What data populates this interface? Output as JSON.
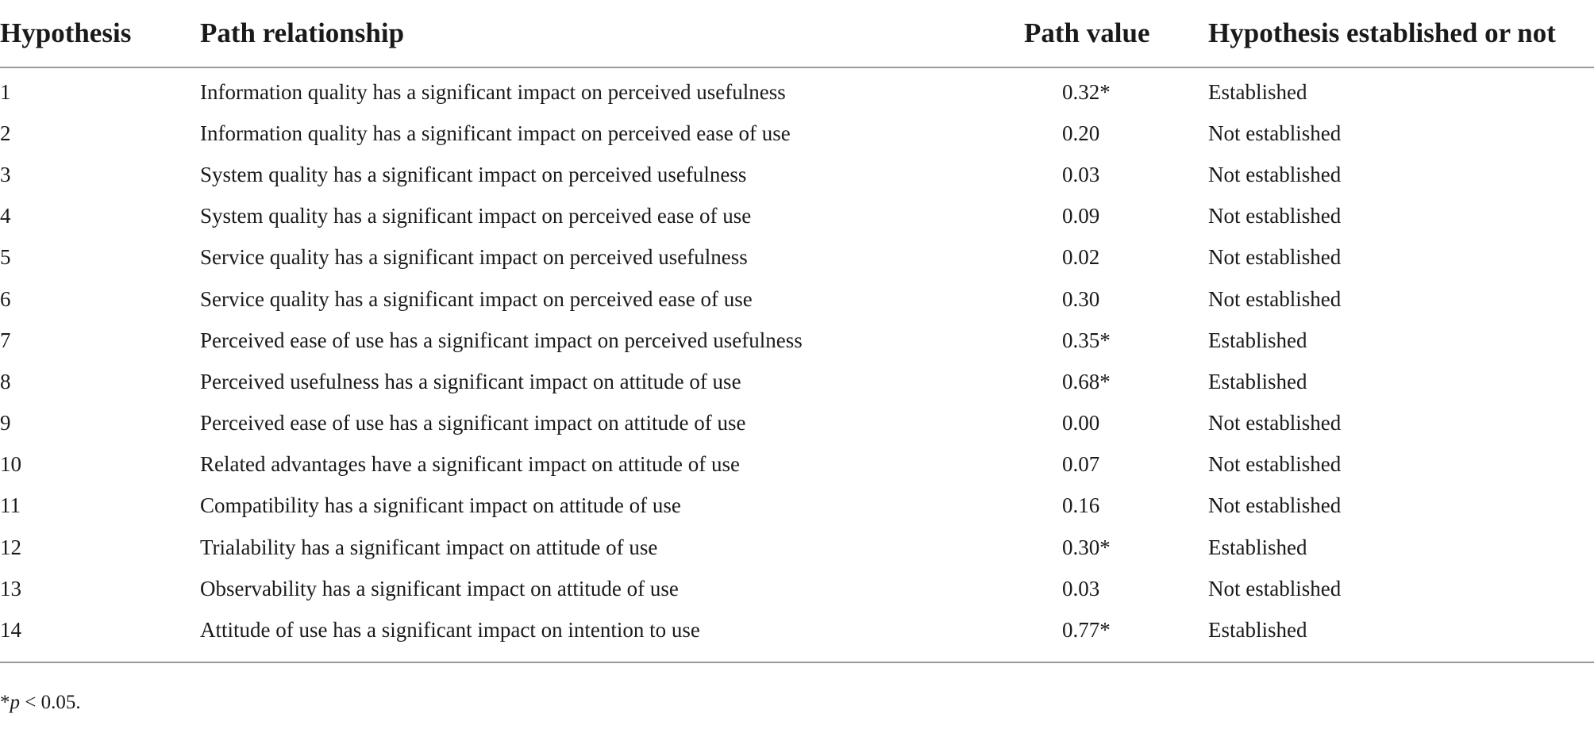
{
  "table": {
    "headers": {
      "hypothesis": "Hypothesis",
      "path_relationship": "Path relationship",
      "path_value": "Path value",
      "established": "Hypothesis established or not"
    },
    "rows": [
      {
        "hypothesis": "1",
        "path": "Information quality has a significant impact on perceived usefulness",
        "value": "0.32*",
        "established": "Established"
      },
      {
        "hypothesis": "2",
        "path": "Information quality has a significant impact on perceived ease of use",
        "value": "0.20",
        "established": "Not established"
      },
      {
        "hypothesis": "3",
        "path": "System quality has a significant impact on perceived usefulness",
        "value": "0.03",
        "established": "Not established"
      },
      {
        "hypothesis": "4",
        "path": "System quality has a significant impact on perceived ease of use",
        "value": "0.09",
        "established": "Not established"
      },
      {
        "hypothesis": "5",
        "path": "Service quality has a significant impact on perceived usefulness",
        "value": "0.02",
        "established": "Not established"
      },
      {
        "hypothesis": "6",
        "path": "Service quality has a significant impact on perceived ease of use",
        "value": "0.30",
        "established": "Not established"
      },
      {
        "hypothesis": "7",
        "path": "Perceived ease of use has a significant impact on perceived usefulness",
        "value": "0.35*",
        "established": "Established"
      },
      {
        "hypothesis": "8",
        "path": "Perceived usefulness has a significant impact on attitude of use",
        "value": "0.68*",
        "established": "Established"
      },
      {
        "hypothesis": "9",
        "path": "Perceived ease of use has a significant impact on attitude of use",
        "value": "0.00",
        "established": "Not established"
      },
      {
        "hypothesis": "10",
        "path": "Related advantages have a significant impact on attitude of use",
        "value": "0.07",
        "established": "Not established"
      },
      {
        "hypothesis": "11",
        "path": "Compatibility has a significant impact on attitude of use",
        "value": "0.16",
        "established": "Not established"
      },
      {
        "hypothesis": "12",
        "path": "Trialability has a significant impact on attitude of use",
        "value": "0.30*",
        "established": "Established"
      },
      {
        "hypothesis": "13",
        "path": "Observability has a significant impact on attitude of use",
        "value": "0.03",
        "established": "Not established"
      },
      {
        "hypothesis": "14",
        "path": "Attitude of use has a significant impact on intention to use",
        "value": "0.77*",
        "established": "Established"
      }
    ]
  },
  "footnote": {
    "star": "*",
    "p": "p",
    "rest": " < 0.05."
  }
}
